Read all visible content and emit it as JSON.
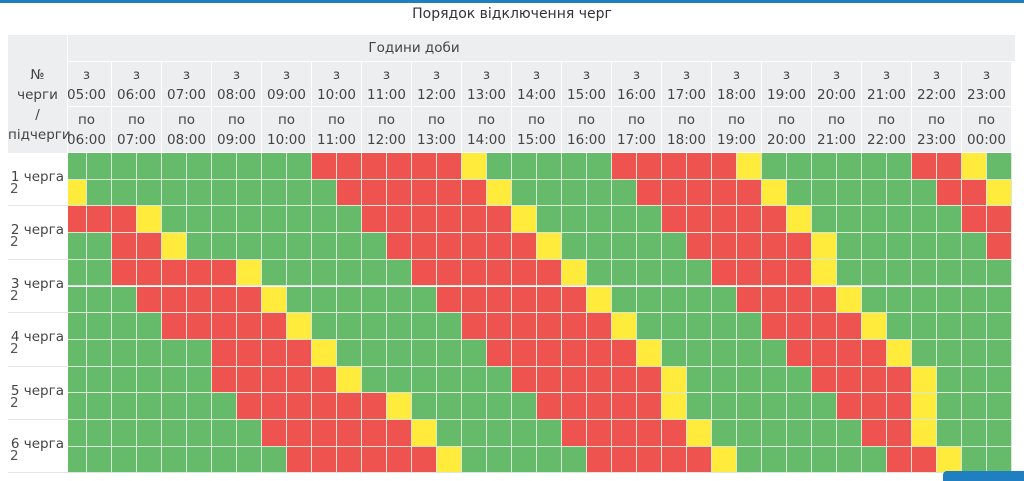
{
  "title": "Порядок відключення черг",
  "header": {
    "corner_lines": [
      "№ черги",
      "/",
      "підчерги"
    ],
    "group_label": "Години доби",
    "from_prefix": "з",
    "to_prefix": "по",
    "hours": [
      {
        "from": "05:00",
        "to": "06:00"
      },
      {
        "from": "06:00",
        "to": "07:00"
      },
      {
        "from": "07:00",
        "to": "08:00"
      },
      {
        "from": "08:00",
        "to": "09:00"
      },
      {
        "from": "09:00",
        "to": "10:00"
      },
      {
        "from": "10:00",
        "to": "11:00"
      },
      {
        "from": "11:00",
        "to": "12:00"
      },
      {
        "from": "12:00",
        "to": "13:00"
      },
      {
        "from": "13:00",
        "to": "14:00"
      },
      {
        "from": "14:00",
        "to": "15:00"
      },
      {
        "from": "15:00",
        "to": "16:00"
      },
      {
        "from": "16:00",
        "to": "17:00"
      },
      {
        "from": "17:00",
        "to": "18:00"
      },
      {
        "from": "18:00",
        "to": "19:00"
      },
      {
        "from": "19:00",
        "to": "20:00"
      },
      {
        "from": "20:00",
        "to": "21:00"
      },
      {
        "from": "21:00",
        "to": "22:00"
      },
      {
        "from": "22:00",
        "to": "23:00"
      },
      {
        "from": "23:00",
        "to": "00:00"
      }
    ]
  },
  "status_colors": {
    "G": "#66bb6a",
    "R": "#ef5350",
    "Y": "#ffeb3b"
  },
  "status_legend": {
    "G": "power-on",
    "R": "outage",
    "Y": "possible-outage"
  },
  "queues": [
    {
      "label": "1 черга",
      "sub": "2",
      "rows": [
        "GGGGGGGGGGRRRRRRYGGGGGRRRRRYGGGGGGRRYG",
        "YGGGGGGGGGGRRRRRRYGGGGGRRRRRYGGGGGGRRY"
      ]
    },
    {
      "label": "2 черга",
      "sub": "2",
      "rows": [
        "RRRYGGGGGGGGRRRRRRYGGGGGRRRRRYGGGGGGRR",
        "GGRRYGGGGGGGGRRRRRRYGGGGGRRRRRYGGGGGGR"
      ]
    },
    {
      "label": "3 черга",
      "sub": "2",
      "rows": [
        "GGRRRRRYGGGGGGRRRRRRYGGGGGRRRRYGGGGGGG",
        "GGGRRRRRYGGGGGGRRRRRRYGGGGGRRRRYGGGGGG"
      ]
    },
    {
      "label": "4 черга",
      "sub": "2",
      "rows": [
        "GGGGRRRRRYGGGGGGRRRRRRYGGGGGRRRRYGGGGG",
        "GGGGGGRRRRYGGGGGGRRRRRRYGGGGGRRRRYGGGG"
      ]
    },
    {
      "label": "5 черга",
      "sub": "2",
      "rows": [
        "GGGGGGRRRRRYGGGGGGRRRRRRYGGGGGRRRRYGGG",
        "GGGGGGGRRRRRRYGGGGGRRRRRYGGGGGGRRRYGGG"
      ]
    },
    {
      "label": "6 черга",
      "sub": "2",
      "rows": [
        "GGGGGGGGRRRRRRYGGGGGRRRRRYGGGGGGRRYGGG",
        "GGGGGGGGGRRRRRRYGGGGGRRRRRYGGGGGGRRYGG"
      ]
    }
  ]
}
